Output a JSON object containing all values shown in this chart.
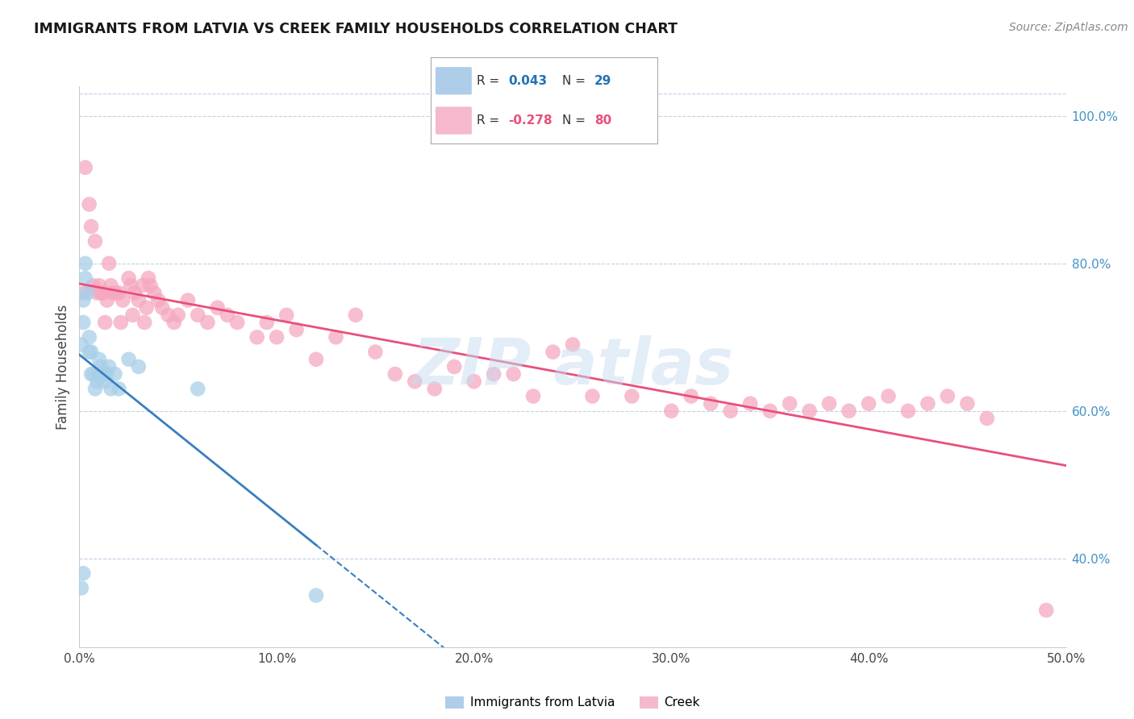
{
  "title": "IMMIGRANTS FROM LATVIA VS CREEK FAMILY HOUSEHOLDS CORRELATION CHART",
  "source": "Source: ZipAtlas.com",
  "ylabel": "Family Households",
  "right_ytick_labels": [
    "40.0%",
    "60.0%",
    "80.0%",
    "100.0%"
  ],
  "right_ytick_values": [
    0.4,
    0.6,
    0.8,
    1.0
  ],
  "xmin": 0.0,
  "xmax": 0.5,
  "ymin": 0.28,
  "ymax": 1.04,
  "blue_color": "#a8cfe8",
  "pink_color": "#f5a8bf",
  "blue_line_color": "#3a7ebf",
  "pink_line_color": "#e8507a",
  "watermark_text": "ZIP atlas",
  "watermark_color": "#c8ddf0",
  "bottom_label_latvia": "Immigrants from Latvia",
  "bottom_label_creek": "Creek",
  "legend_R1": "R = ",
  "legend_R1_val": "0.043",
  "legend_N1": "N = ",
  "legend_N1_val": "29",
  "legend_R2": "R = ",
  "legend_R2_val": "-0.278",
  "legend_N2": "N = ",
  "legend_N2_val": "80",
  "legend_val_color": "#2171b5",
  "legend_val2_color": "#e8507a",
  "latvia_x": [
    0.001,
    0.002,
    0.002,
    0.003,
    0.003,
    0.004,
    0.005,
    0.005,
    0.006,
    0.006,
    0.007,
    0.008,
    0.009,
    0.01,
    0.01,
    0.011,
    0.012,
    0.013,
    0.014,
    0.015,
    0.016,
    0.018,
    0.02,
    0.025,
    0.03,
    0.06,
    0.001,
    0.002,
    0.12
  ],
  "latvia_y": [
    0.69,
    0.72,
    0.75,
    0.78,
    0.8,
    0.76,
    0.7,
    0.68,
    0.68,
    0.65,
    0.65,
    0.63,
    0.64,
    0.65,
    0.67,
    0.66,
    0.65,
    0.64,
    0.65,
    0.66,
    0.63,
    0.65,
    0.63,
    0.67,
    0.66,
    0.63,
    0.36,
    0.38,
    0.35
  ],
  "creek_x": [
    0.002,
    0.005,
    0.007,
    0.009,
    0.01,
    0.012,
    0.014,
    0.015,
    0.016,
    0.018,
    0.02,
    0.022,
    0.025,
    0.026,
    0.028,
    0.03,
    0.032,
    0.034,
    0.035,
    0.036,
    0.038,
    0.04,
    0.042,
    0.045,
    0.048,
    0.05,
    0.055,
    0.06,
    0.065,
    0.07,
    0.075,
    0.08,
    0.09,
    0.095,
    0.1,
    0.105,
    0.11,
    0.12,
    0.13,
    0.14,
    0.15,
    0.16,
    0.17,
    0.18,
    0.19,
    0.2,
    0.21,
    0.22,
    0.23,
    0.24,
    0.25,
    0.26,
    0.28,
    0.3,
    0.31,
    0.32,
    0.33,
    0.34,
    0.35,
    0.36,
    0.37,
    0.38,
    0.39,
    0.4,
    0.41,
    0.42,
    0.43,
    0.44,
    0.45,
    0.46,
    0.003,
    0.006,
    0.008,
    0.011,
    0.013,
    0.017,
    0.021,
    0.027,
    0.033,
    0.49
  ],
  "creek_y": [
    0.76,
    0.88,
    0.77,
    0.76,
    0.77,
    0.76,
    0.75,
    0.8,
    0.77,
    0.76,
    0.76,
    0.75,
    0.78,
    0.77,
    0.76,
    0.75,
    0.77,
    0.74,
    0.78,
    0.77,
    0.76,
    0.75,
    0.74,
    0.73,
    0.72,
    0.73,
    0.75,
    0.73,
    0.72,
    0.74,
    0.73,
    0.72,
    0.7,
    0.72,
    0.7,
    0.73,
    0.71,
    0.67,
    0.7,
    0.73,
    0.68,
    0.65,
    0.64,
    0.63,
    0.66,
    0.64,
    0.65,
    0.65,
    0.62,
    0.68,
    0.69,
    0.62,
    0.62,
    0.6,
    0.62,
    0.61,
    0.6,
    0.61,
    0.6,
    0.61,
    0.6,
    0.61,
    0.6,
    0.61,
    0.62,
    0.6,
    0.61,
    0.62,
    0.61,
    0.59,
    0.93,
    0.85,
    0.83,
    0.76,
    0.72,
    0.76,
    0.72,
    0.73,
    0.72,
    0.33
  ]
}
